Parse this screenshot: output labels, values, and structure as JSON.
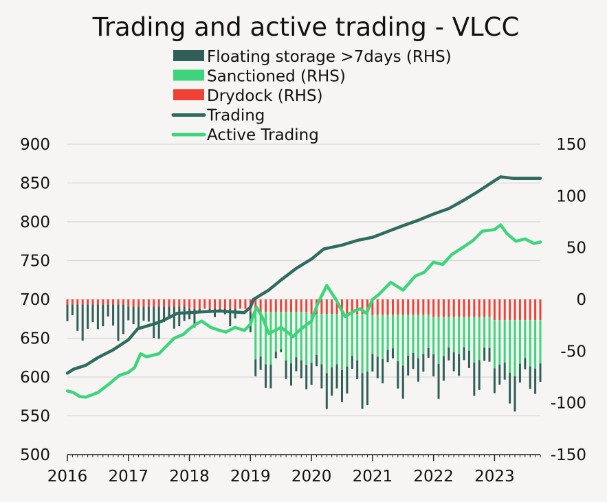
{
  "chart_data": {
    "type": "line",
    "title": "Trading and active trading - VLCC",
    "xlabel": "",
    "ylabel": "",
    "x_ticks": [
      "2016",
      "2017",
      "2018",
      "2019",
      "2020",
      "2021",
      "2022",
      "2023"
    ],
    "xlim": [
      2016.0,
      2023.75
    ],
    "ylim": [
      500,
      900
    ],
    "y_ticks": [
      "900",
      "850",
      "800",
      "750",
      "700",
      "650",
      "600",
      "550",
      "500"
    ],
    "y2lim": [
      -150,
      150
    ],
    "y2_ticks": [
      "150",
      "100",
      "50",
      "0",
      "-50",
      "-100",
      "-150"
    ],
    "grid": true,
    "legend_position": "top-center",
    "legend": [
      {
        "label": "Floating storage >7days (RHS)",
        "color": "#2f5f57",
        "kind": "bar"
      },
      {
        "label": "Sanctioned (RHS)",
        "color": "#3ed47c",
        "kind": "bar"
      },
      {
        "label": "Drydock (RHS)",
        "color": "#ef4136",
        "kind": "bar"
      },
      {
        "label": "Trading",
        "color": "#2f6b5e",
        "kind": "line"
      },
      {
        "label": "Active Trading",
        "color": "#3ed47c",
        "kind": "line"
      }
    ],
    "line_series": [
      {
        "name": "Trading",
        "axis": "left",
        "color": "#2f6b5e",
        "points": [
          [
            2016.0,
            605
          ],
          [
            2016.1,
            610
          ],
          [
            2016.3,
            615
          ],
          [
            2016.5,
            625
          ],
          [
            2016.75,
            635
          ],
          [
            2017.0,
            648
          ],
          [
            2017.15,
            662
          ],
          [
            2017.4,
            668
          ],
          [
            2017.55,
            672
          ],
          [
            2017.7,
            678
          ],
          [
            2017.8,
            682
          ],
          [
            2018.0,
            683
          ],
          [
            2018.2,
            684
          ],
          [
            2018.5,
            685
          ],
          [
            2018.7,
            684
          ],
          [
            2018.9,
            683
          ],
          [
            2019.0,
            690
          ],
          [
            2019.05,
            700
          ],
          [
            2019.3,
            712
          ],
          [
            2019.5,
            725
          ],
          [
            2019.75,
            740
          ],
          [
            2020.0,
            752
          ],
          [
            2020.2,
            765
          ],
          [
            2020.5,
            770
          ],
          [
            2020.75,
            776
          ],
          [
            2021.0,
            780
          ],
          [
            2021.2,
            786
          ],
          [
            2021.5,
            795
          ],
          [
            2021.75,
            802
          ],
          [
            2022.0,
            810
          ],
          [
            2022.25,
            817
          ],
          [
            2022.5,
            828
          ],
          [
            2022.75,
            840
          ],
          [
            2023.0,
            853
          ],
          [
            2023.1,
            858
          ],
          [
            2023.3,
            856
          ],
          [
            2023.75,
            856
          ]
        ]
      },
      {
        "name": "Active Trading",
        "axis": "left",
        "color": "#3ed47c",
        "points": [
          [
            2016.0,
            582
          ],
          [
            2016.1,
            580
          ],
          [
            2016.2,
            575
          ],
          [
            2016.3,
            574
          ],
          [
            2016.5,
            580
          ],
          [
            2016.7,
            592
          ],
          [
            2016.85,
            602
          ],
          [
            2017.0,
            606
          ],
          [
            2017.1,
            612
          ],
          [
            2017.2,
            630
          ],
          [
            2017.3,
            626
          ],
          [
            2017.5,
            630
          ],
          [
            2017.6,
            638
          ],
          [
            2017.75,
            650
          ],
          [
            2017.9,
            655
          ],
          [
            2018.0,
            662
          ],
          [
            2018.1,
            668
          ],
          [
            2018.2,
            672
          ],
          [
            2018.35,
            664
          ],
          [
            2018.5,
            660
          ],
          [
            2018.6,
            658
          ],
          [
            2018.75,
            664
          ],
          [
            2018.9,
            660
          ],
          [
            2019.0,
            668
          ],
          [
            2019.05,
            680
          ],
          [
            2019.1,
            690
          ],
          [
            2019.2,
            676
          ],
          [
            2019.3,
            656
          ],
          [
            2019.5,
            664
          ],
          [
            2019.7,
            652
          ],
          [
            2019.8,
            660
          ],
          [
            2020.0,
            672
          ],
          [
            2020.1,
            694
          ],
          [
            2020.25,
            718
          ],
          [
            2020.4,
            700
          ],
          [
            2020.55,
            678
          ],
          [
            2020.7,
            685
          ],
          [
            2020.8,
            688
          ],
          [
            2020.9,
            682
          ],
          [
            2021.0,
            700
          ],
          [
            2021.1,
            706
          ],
          [
            2021.3,
            722
          ],
          [
            2021.5,
            712
          ],
          [
            2021.7,
            730
          ],
          [
            2021.85,
            735
          ],
          [
            2022.0,
            748
          ],
          [
            2022.15,
            745
          ],
          [
            2022.3,
            758
          ],
          [
            2022.5,
            768
          ],
          [
            2022.65,
            776
          ],
          [
            2022.8,
            788
          ],
          [
            2023.0,
            790
          ],
          [
            2023.1,
            796
          ],
          [
            2023.2,
            785
          ],
          [
            2023.35,
            775
          ],
          [
            2023.5,
            778
          ],
          [
            2023.65,
            772
          ],
          [
            2023.75,
            774
          ]
        ]
      }
    ],
    "bar_series": [
      {
        "name": "Drydock (RHS)",
        "axis": "right",
        "color": "#ef4136",
        "sign": "negative",
        "x_range": [
          2016.0,
          2023.75
        ],
        "values_by_year": {
          "2016": -5,
          "2017": -7,
          "2018": -9,
          "2019": -12,
          "2020": -14,
          "2021": -15,
          "2022": -17,
          "2023": -20
        }
      },
      {
        "name": "Sanctioned (RHS)",
        "axis": "right",
        "color": "#3ed47c",
        "sign": "negative",
        "x_range": [
          2019.05,
          2023.75
        ],
        "values_by_year": {
          "2019": -45,
          "2020": -50,
          "2021": -40,
          "2022": -35,
          "2023": -45
        }
      },
      {
        "name": "Floating storage >7days (RHS)",
        "axis": "right",
        "color": "#2f5f57",
        "sign": "negative",
        "x_range": [
          2016.0,
          2023.75
        ],
        "values_by_year": {
          "2016": -22,
          "2017": -20,
          "2018": -5,
          "2019": -15,
          "2020": -25,
          "2021": -20,
          "2022": -20,
          "2023": -22
        }
      }
    ]
  }
}
